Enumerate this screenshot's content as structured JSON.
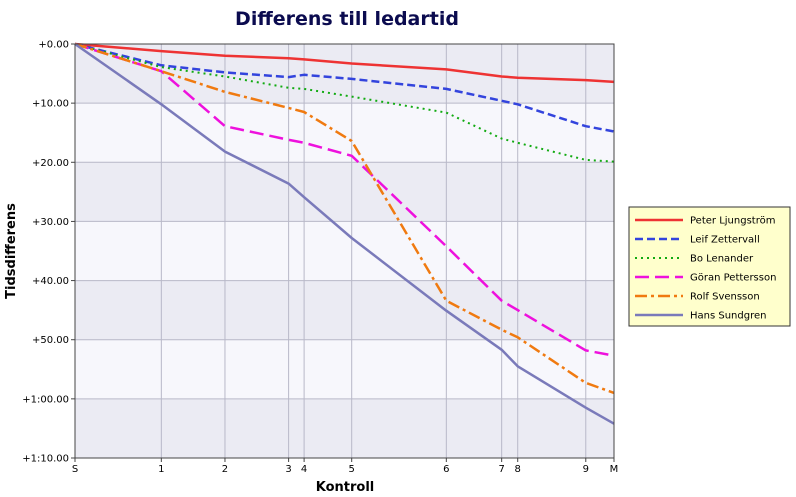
{
  "chart_data": {
    "type": "line",
    "title": "Differens till ledartid",
    "xlabel": "Kontroll",
    "ylabel": "Tidsdifferens",
    "x_categories": [
      "S",
      "1",
      "2",
      "3",
      "4",
      "5",
      "6",
      "7",
      "8",
      "9",
      "M"
    ],
    "x_positions": [
      0,
      1.56,
      2.71,
      3.86,
      4.14,
      5.0,
      6.71,
      7.71,
      8.0,
      9.23,
      9.74
    ],
    "y_ticks": [
      {
        "value": 0,
        "label": "+0.00"
      },
      {
        "value": 10,
        "label": "+10.00"
      },
      {
        "value": 20,
        "label": "+20.00"
      },
      {
        "value": 30,
        "label": "+30.00"
      },
      {
        "value": 40,
        "label": "+40.00"
      },
      {
        "value": 50,
        "label": "+50.00"
      },
      {
        "value": 60,
        "label": "+1:00.00"
      },
      {
        "value": 70,
        "label": "+1:10.00"
      }
    ],
    "ylim": [
      0,
      70
    ],
    "y_inverted": true,
    "grid": true,
    "legend_position": "right",
    "series": [
      {
        "name": "Peter Ljungström",
        "color": "#ee3333",
        "dash": "solid",
        "values": [
          0,
          1.2,
          2.0,
          2.4,
          2.6,
          3.3,
          4.3,
          5.5,
          5.7,
          6.1,
          6.4
        ]
      },
      {
        "name": "Leif Zettervall",
        "color": "#3344dd",
        "dash": "dashed",
        "values": [
          0,
          3.6,
          4.8,
          5.6,
          5.2,
          5.9,
          7.6,
          9.6,
          10.2,
          13.9,
          14.8
        ]
      },
      {
        "name": "Bo Lenander",
        "color": "#11aa11",
        "dash": "dotted",
        "values": [
          0,
          3.9,
          5.5,
          7.4,
          7.6,
          8.9,
          11.6,
          16.0,
          16.7,
          19.6,
          19.9
        ]
      },
      {
        "name": "Göran Pettersson",
        "color": "#ee11dd",
        "dash": "longdash",
        "values": [
          0,
          4.6,
          13.9,
          16.2,
          16.7,
          18.9,
          34.2,
          43.4,
          45.0,
          51.8,
          52.7
        ]
      },
      {
        "name": "Rolf Svensson",
        "color": "#f07a10",
        "dash": "dashdot",
        "values": [
          0,
          4.6,
          8.1,
          10.8,
          11.5,
          16.4,
          43.4,
          48.3,
          49.6,
          57.3,
          59.0
        ]
      },
      {
        "name": "Hans Sundgren",
        "color": "#7a7aba",
        "dash": "solid",
        "values": [
          0,
          10.2,
          18.2,
          23.6,
          25.9,
          32.8,
          45.1,
          51.7,
          54.5,
          61.5,
          64.2
        ]
      }
    ]
  }
}
